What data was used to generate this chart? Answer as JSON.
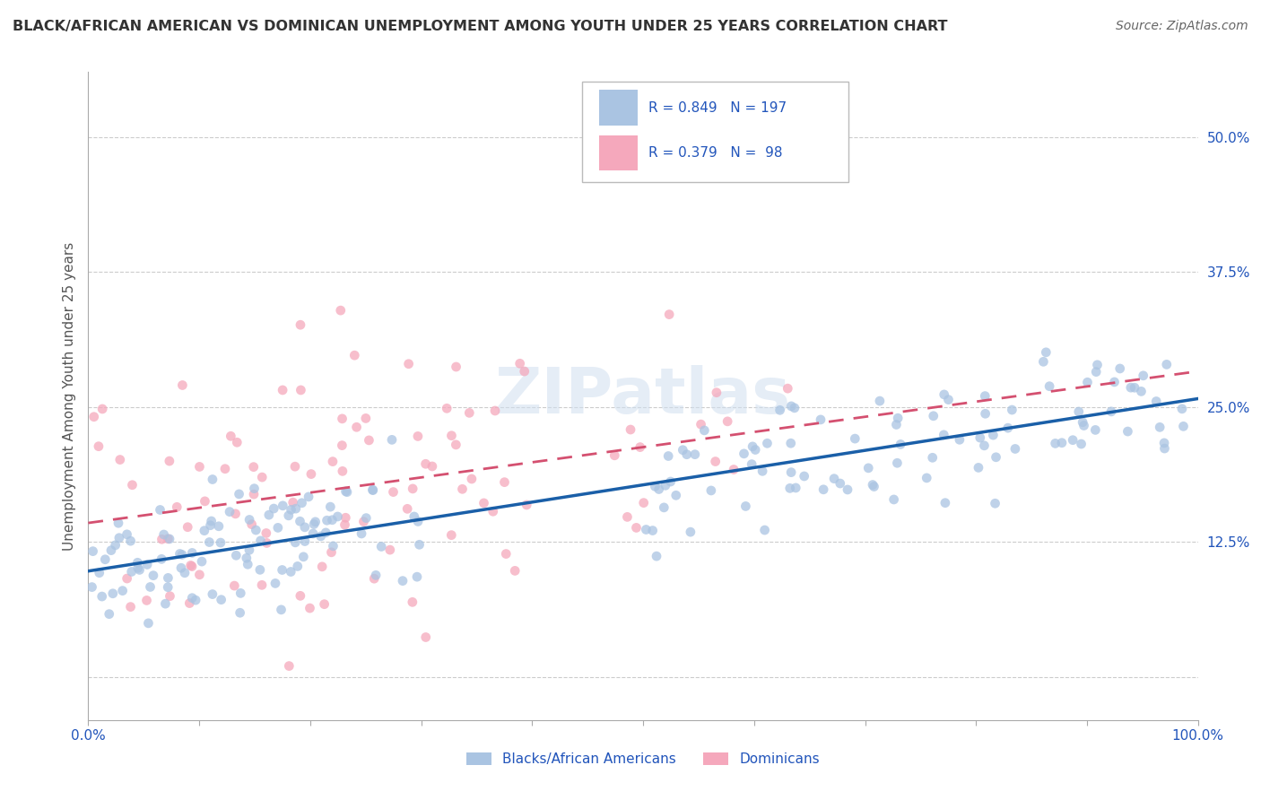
{
  "title": "BLACK/AFRICAN AMERICAN VS DOMINICAN UNEMPLOYMENT AMONG YOUTH UNDER 25 YEARS CORRELATION CHART",
  "source": "Source: ZipAtlas.com",
  "ylabel": "Unemployment Among Youth under 25 years",
  "xlim": [
    0.0,
    1.0
  ],
  "ylim": [
    -0.04,
    0.56
  ],
  "xticks": [
    0.0,
    0.1,
    0.2,
    0.3,
    0.4,
    0.5,
    0.6,
    0.7,
    0.8,
    0.9,
    1.0
  ],
  "xticklabels": [
    "0.0%",
    "",
    "",
    "",
    "",
    "",
    "",
    "",
    "",
    "",
    "100.0%"
  ],
  "ytick_positions": [
    0.0,
    0.125,
    0.25,
    0.375,
    0.5
  ],
  "ytick_labels": [
    "",
    "12.5%",
    "25.0%",
    "37.5%",
    "50.0%"
  ],
  "blue_R": 0.849,
  "blue_N": 197,
  "pink_R": 0.379,
  "pink_N": 98,
  "blue_color": "#aac4e2",
  "pink_color": "#f5a8bc",
  "blue_line_color": "#1a5fa8",
  "pink_line_color": "#d45070",
  "legend_text_color": "#2255bb",
  "title_color": "#333333",
  "axis_label_color": "#555555",
  "tick_label_color": "#2255bb",
  "background_color": "#ffffff",
  "grid_color": "#cccccc",
  "watermark": "ZIPatlas",
  "blue_seed": 42,
  "pink_seed": 77,
  "blue_slope": 0.155,
  "blue_intercept": 0.095,
  "blue_noise": 0.03,
  "pink_slope": 0.145,
  "pink_intercept": 0.135,
  "pink_noise": 0.065
}
